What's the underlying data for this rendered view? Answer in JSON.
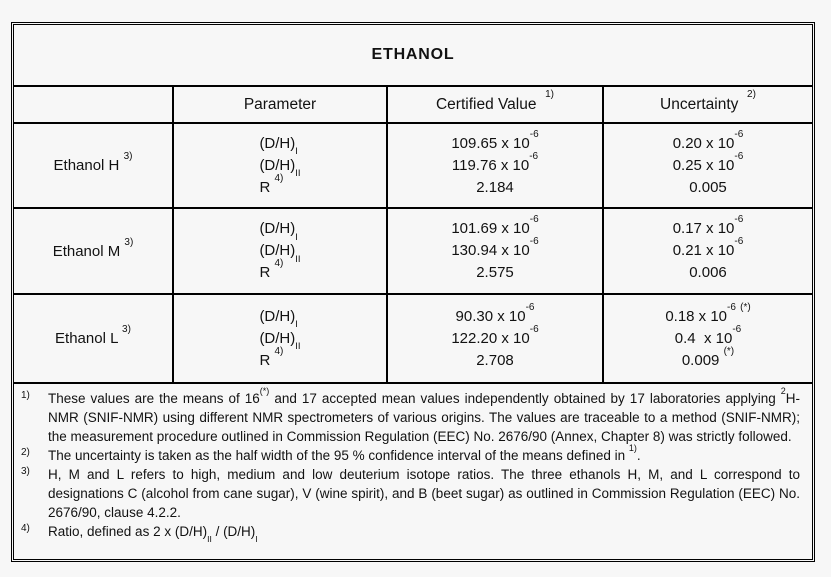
{
  "colors": {
    "background": "#f7f7f7",
    "border": "#000000",
    "text": "#121212"
  },
  "table": {
    "title": "ETHANOL",
    "columns": {
      "parameter": "Parameter",
      "certified_value": [
        {
          "t": "Certified Value  "
        },
        {
          "t": "1)",
          "s": "sup"
        }
      ],
      "uncertainty": [
        {
          "t": "Uncertainty  "
        },
        {
          "t": "2)",
          "s": "sup"
        }
      ]
    },
    "rows": [
      {
        "label": [
          {
            "t": "Ethanol H "
          },
          {
            "t": "3)",
            "s": "sup"
          }
        ],
        "parameters": [
          [
            {
              "t": "(D/H)"
            },
            {
              "t": "I",
              "s": "sub"
            }
          ],
          [
            {
              "t": "(D/H)"
            },
            {
              "t": "II",
              "s": "sub"
            }
          ],
          [
            {
              "t": "R "
            },
            {
              "t": "4)",
              "s": "sup"
            }
          ]
        ],
        "certified": [
          [
            {
              "t": "109.65 x 10"
            },
            {
              "t": "-6",
              "s": "sup"
            }
          ],
          [
            {
              "t": "119.76 x 10"
            },
            {
              "t": "-6",
              "s": "sup"
            }
          ],
          [
            {
              "t": "2.184"
            }
          ]
        ],
        "uncertainty": [
          [
            {
              "t": "0.20 x 10"
            },
            {
              "t": "-6",
              "s": "sup"
            }
          ],
          [
            {
              "t": "0.25 x 10"
            },
            {
              "t": "-6",
              "s": "sup"
            }
          ],
          [
            {
              "t": "0.005"
            }
          ]
        ]
      },
      {
        "label": [
          {
            "t": "Ethanol M "
          },
          {
            "t": "3)",
            "s": "sup"
          }
        ],
        "parameters": [
          [
            {
              "t": "(D/H)"
            },
            {
              "t": "I",
              "s": "sub"
            }
          ],
          [
            {
              "t": "(D/H)"
            },
            {
              "t": "II",
              "s": "sub"
            }
          ],
          [
            {
              "t": "R "
            },
            {
              "t": "4)",
              "s": "sup"
            }
          ]
        ],
        "certified": [
          [
            {
              "t": "101.69 x 10"
            },
            {
              "t": "-6",
              "s": "sup"
            }
          ],
          [
            {
              "t": "130.94 x 10"
            },
            {
              "t": "-6",
              "s": "sup"
            }
          ],
          [
            {
              "t": "2.575"
            }
          ]
        ],
        "uncertainty": [
          [
            {
              "t": "0.17 x 10"
            },
            {
              "t": "-6",
              "s": "sup"
            }
          ],
          [
            {
              "t": "0.21 x 10"
            },
            {
              "t": "-6",
              "s": "sup"
            }
          ],
          [
            {
              "t": "0.006"
            }
          ]
        ]
      },
      {
        "label": [
          {
            "t": "Ethanol L "
          },
          {
            "t": "3)",
            "s": "sup"
          }
        ],
        "parameters": [
          [
            {
              "t": "(D/H)"
            },
            {
              "t": "I",
              "s": "sub"
            }
          ],
          [
            {
              "t": "(D/H)"
            },
            {
              "t": "II",
              "s": "sub"
            }
          ],
          [
            {
              "t": "R "
            },
            {
              "t": "4)",
              "s": "sup"
            }
          ]
        ],
        "certified": [
          [
            {
              "t": "90.30 x 10"
            },
            {
              "t": "-6",
              "s": "sup"
            }
          ],
          [
            {
              "t": "122.20 x 10"
            },
            {
              "t": "-6",
              "s": "sup"
            }
          ],
          [
            {
              "t": "2.708"
            }
          ]
        ],
        "uncertainty": [
          [
            {
              "t": "0.18 x 10"
            },
            {
              "t": "-6",
              "s": "sup"
            },
            {
              "t": " "
            },
            {
              "t": "(*)",
              "s": "sup"
            }
          ],
          [
            {
              "t": "0.4  x 10"
            },
            {
              "t": "-6",
              "s": "sup"
            }
          ],
          [
            {
              "t": "0.009 "
            },
            {
              "t": "(*)",
              "s": "sup"
            }
          ]
        ]
      }
    ],
    "footnotes": [
      {
        "marker": "1)",
        "segments": [
          {
            "t": "These values are the means of 16"
          },
          {
            "t": "(*)",
            "s": "sup"
          },
          {
            "t": " and 17 accepted mean values independently obtained by 17 laboratories applying "
          },
          {
            "t": "2",
            "s": "sup"
          },
          {
            "t": "H-NMR (SNIF-NMR) using different NMR spectrometers of various origins. The values are traceable to a method (SNIF-NMR); the measurement procedure outlined in Commission Regulation (EEC) No. 2676/90 (Annex, Chapter 8) was strictly followed."
          }
        ]
      },
      {
        "marker": "2)",
        "segments": [
          {
            "t": "The uncertainty is taken as the half width of the 95 % confidence interval of the means defined in "
          },
          {
            "t": "1)",
            "s": "sup"
          },
          {
            "t": "."
          }
        ]
      },
      {
        "marker": "3)",
        "segments": [
          {
            "t": "H, M and L refers to high, medium and low deuterium isotope ratios. The three ethanols H, M, and L correspond to designations C (alcohol from cane sugar), V (wine spirit), and B (beet sugar) as outlined in Commission Regulation (EEC) No. 2676/90, clause 4.2.2."
          }
        ]
      },
      {
        "marker": "4)",
        "segments": [
          {
            "t": "Ratio, defined as 2 x (D/H)"
          },
          {
            "t": "II",
            "s": "sub"
          },
          {
            "t": " / (D/H)"
          },
          {
            "t": "I",
            "s": "sub"
          }
        ]
      }
    ]
  }
}
